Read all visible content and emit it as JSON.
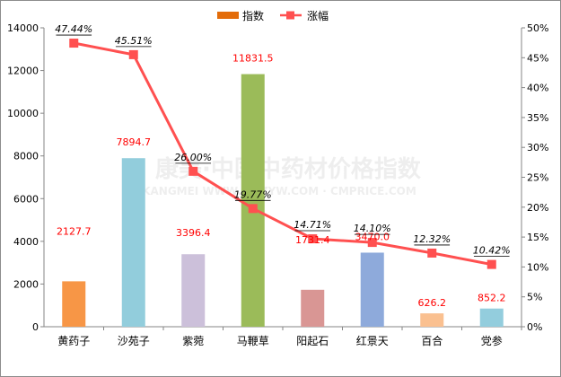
{
  "chart_data": {
    "type": "bar",
    "categories": [
      "黄药子",
      "沙苑子",
      "紫菀",
      "马鞭草",
      "阳起石",
      "红景天",
      "百合",
      "党参"
    ],
    "series": [
      {
        "name": "指数",
        "type": "bar",
        "axis": "left",
        "values": [
          2127.7,
          7894.7,
          3396.4,
          11831.5,
          1731.4,
          3470.0,
          626.2,
          852.2
        ],
        "labels": [
          "2127.7",
          "7894.7",
          "3396.4",
          "11831.5",
          "1731.4",
          "3470.0",
          "626.2",
          "852.2"
        ],
        "colors": [
          "#f79646",
          "#92cddc",
          "#ccc0da",
          "#9bbb59",
          "#d99694",
          "#8eaadb",
          "#fac090",
          "#93cddd"
        ],
        "label_color": "#ff0000"
      },
      {
        "name": "涨幅",
        "type": "line",
        "axis": "right",
        "values": [
          47.44,
          45.51,
          26.0,
          19.77,
          14.71,
          14.1,
          12.32,
          10.42
        ],
        "labels": [
          "47.44%",
          "45.51%",
          "26.00%",
          "19.77%",
          "14.71%",
          "14.10%",
          "12.32%",
          "10.42%"
        ],
        "color": "#ff5050"
      }
    ],
    "y_left": {
      "min": 0,
      "max": 14000,
      "ticks": [
        "0",
        "2000",
        "4000",
        "6000",
        "8000",
        "10000",
        "12000",
        "14000"
      ]
    },
    "y_right": {
      "min": 0,
      "max": 50,
      "ticks": [
        "0%",
        "5%",
        "10%",
        "15%",
        "20%",
        "25%",
        "30%",
        "35%",
        "40%",
        "45%",
        "50%"
      ]
    },
    "grid": false,
    "legend_position": "top-center",
    "legend": {
      "bar_label": "指数",
      "line_label": "涨幅",
      "bar_color": "#e36c09",
      "line_color": "#ff5050"
    }
  },
  "watermark": {
    "main": "康美·中国中药材价格指数",
    "sub": "KANGMEI WWW.KMZYW.COM · CMPRICE.COM"
  }
}
